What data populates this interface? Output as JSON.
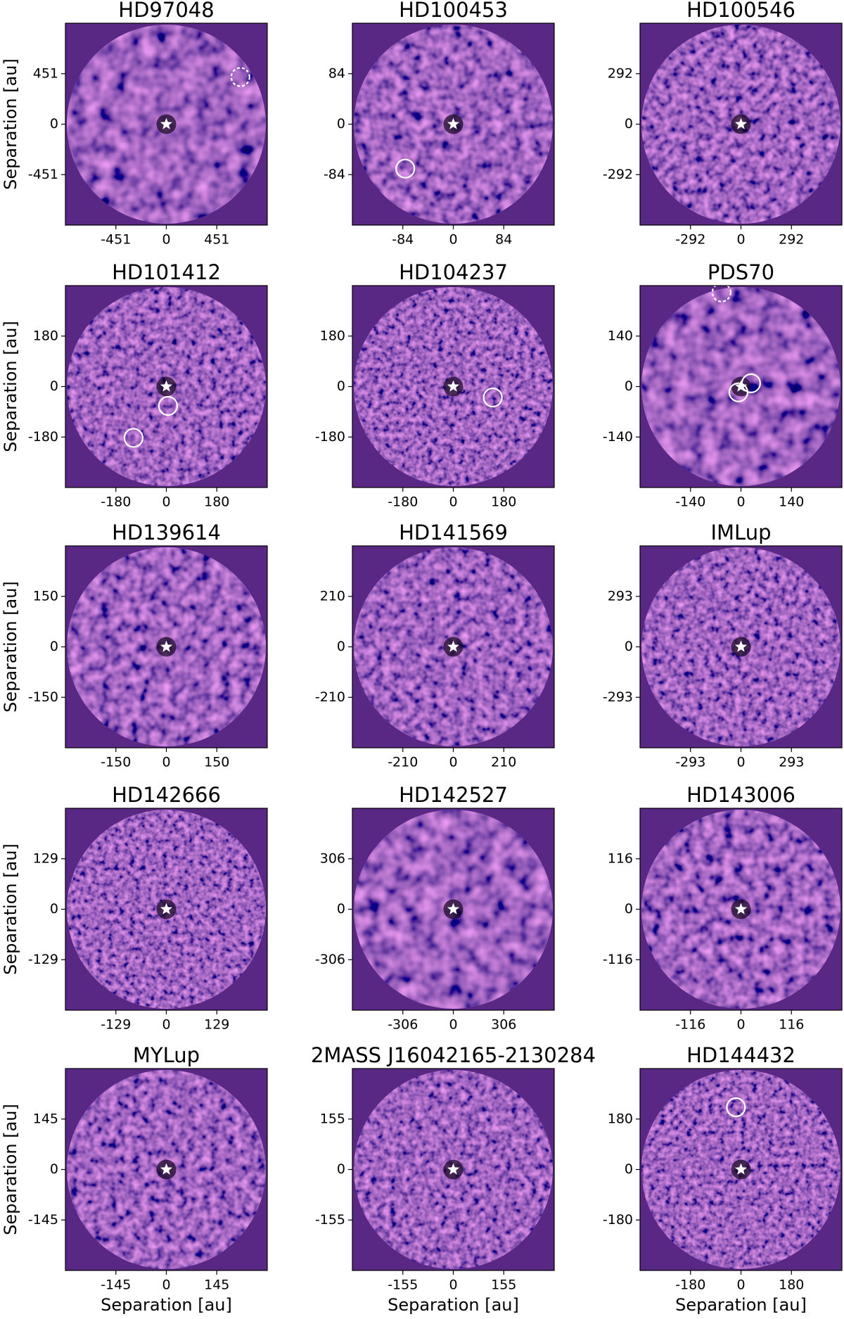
{
  "chart_data": [
    {
      "type": "image",
      "title": "HD97048",
      "xlim": [
        -902,
        902
      ],
      "ylim": [
        -902,
        902
      ],
      "xticks": [
        -451,
        0,
        451
      ],
      "yticks": [
        -451,
        0,
        451
      ],
      "ylabel": "Separation [au]",
      "markers": [
        {
          "x": 662,
          "y": 421,
          "style": "dashed"
        }
      ]
    },
    {
      "type": "image",
      "title": "HD100453",
      "xlim": [
        -168,
        168
      ],
      "ylim": [
        -168,
        168
      ],
      "xticks": [
        -84,
        0,
        84
      ],
      "yticks": [
        -84,
        0,
        84
      ],
      "markers": [
        {
          "x": -80,
          "y": -74,
          "style": "solid"
        }
      ]
    },
    {
      "type": "image",
      "title": "HD100546",
      "xlim": [
        -584,
        584
      ],
      "ylim": [
        -584,
        584
      ],
      "xticks": [
        -292,
        0,
        292
      ],
      "yticks": [
        -292,
        0,
        292
      ],
      "markers": []
    },
    {
      "type": "image",
      "title": "HD101412",
      "xlim": [
        -360,
        360
      ],
      "ylim": [
        -360,
        360
      ],
      "xticks": [
        -180,
        0,
        180
      ],
      "yticks": [
        -180,
        0,
        180
      ],
      "ylabel": "Separation [au]",
      "markers": [
        {
          "x": 6,
          "y": -69,
          "style": "solid"
        },
        {
          "x": -117,
          "y": -183,
          "style": "solid"
        }
      ]
    },
    {
      "type": "image",
      "title": "HD104237",
      "xlim": [
        -360,
        360
      ],
      "ylim": [
        -360,
        360
      ],
      "xticks": [
        -180,
        0,
        180
      ],
      "yticks": [
        -180,
        0,
        180
      ],
      "markers": [
        {
          "x": 141,
          "y": -39,
          "style": "solid"
        }
      ]
    },
    {
      "type": "image",
      "title": "PDS70",
      "xlim": [
        -280,
        280
      ],
      "ylim": [
        -280,
        280
      ],
      "xticks": [
        -140,
        0,
        140
      ],
      "yticks": [
        -140,
        0,
        140
      ],
      "markers": [
        {
          "x": -54,
          "y": 261,
          "style": "dashed"
        },
        {
          "x": -7,
          "y": -16,
          "style": "solid"
        },
        {
          "x": 28,
          "y": 9,
          "style": "solid"
        }
      ]
    },
    {
      "type": "image",
      "title": "HD139614",
      "xlim": [
        -300,
        300
      ],
      "ylim": [
        -300,
        300
      ],
      "xticks": [
        -150,
        0,
        150
      ],
      "yticks": [
        -150,
        0,
        150
      ],
      "ylabel": "Separation [au]",
      "markers": []
    },
    {
      "type": "image",
      "title": "HD141569",
      "xlim": [
        -420,
        420
      ],
      "ylim": [
        -420,
        420
      ],
      "xticks": [
        -210,
        0,
        210
      ],
      "yticks": [
        -210,
        0,
        210
      ],
      "markers": []
    },
    {
      "type": "image",
      "title": "IMLup",
      "xlim": [
        -586,
        586
      ],
      "ylim": [
        -586,
        586
      ],
      "xticks": [
        -293,
        0,
        293
      ],
      "yticks": [
        -293,
        0,
        293
      ],
      "markers": []
    },
    {
      "type": "image",
      "title": "HD142666",
      "xlim": [
        -258,
        258
      ],
      "ylim": [
        -258,
        258
      ],
      "xticks": [
        -129,
        0,
        129
      ],
      "yticks": [
        -129,
        0,
        129
      ],
      "ylabel": "Separation [au]",
      "markers": []
    },
    {
      "type": "image",
      "title": "HD142527",
      "xlim": [
        -612,
        612
      ],
      "ylim": [
        -612,
        612
      ],
      "xticks": [
        -306,
        0,
        306
      ],
      "yticks": [
        -306,
        0,
        306
      ],
      "markers": []
    },
    {
      "type": "image",
      "title": "HD143006",
      "xlim": [
        -232,
        232
      ],
      "ylim": [
        -232,
        232
      ],
      "xticks": [
        -116,
        0,
        116
      ],
      "yticks": [
        -116,
        0,
        116
      ],
      "markers": []
    },
    {
      "type": "image",
      "title": "MYLup",
      "xlim": [
        -290,
        290
      ],
      "ylim": [
        -290,
        290
      ],
      "xticks": [
        -145,
        0,
        145
      ],
      "yticks": [
        -145,
        0,
        145
      ],
      "xlabel": "Separation [au]",
      "ylabel": "Separation [au]",
      "markers": []
    },
    {
      "type": "image",
      "title": "2MASS J16042165-2130284",
      "xlim": [
        -310,
        310
      ],
      "ylim": [
        -310,
        310
      ],
      "xticks": [
        -155,
        0,
        155
      ],
      "yticks": [
        -155,
        0,
        155
      ],
      "xlabel": "Separation [au]",
      "markers": []
    },
    {
      "type": "image",
      "title": "HD144432",
      "xlim": [
        -360,
        360
      ],
      "ylim": [
        -360,
        360
      ],
      "xticks": [
        -180,
        0,
        180
      ],
      "yticks": [
        -180,
        0,
        180
      ],
      "xlabel": "Separation [au]",
      "markers": [
        {
          "x": -18,
          "y": 222,
          "style": "solid"
        }
      ]
    }
  ]
}
